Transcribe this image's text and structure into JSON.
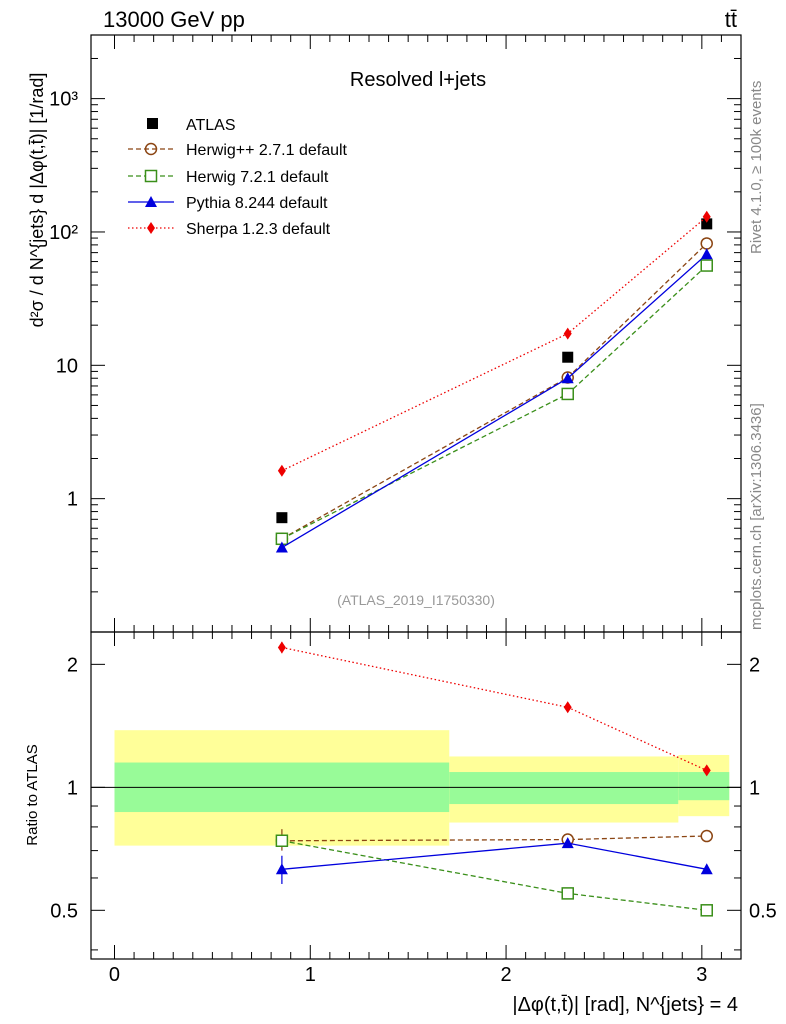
{
  "header": {
    "energy_label": "13000 GeV pp",
    "process_label": "tt̄"
  },
  "side_text": {
    "rivet": "Rivet 4.1.0, ≥ 100k events",
    "mcplots": "mcplots.cern.ch [arXiv:1306.3436]"
  },
  "colors": {
    "atlas": "#000000",
    "herwigpp": "#8b4513",
    "herwig7": "#3a8f1a",
    "pythia": "#0000dd",
    "sherpa": "#ee0000",
    "band_inner": "#98fb98",
    "band_outer": "#ffff99"
  },
  "chart_data": [
    {
      "type": "scatter",
      "panel": "main",
      "title": "Resolved l+jets",
      "analysis_id": "(ATLAS_2019_I1750330)",
      "ylabel": "d²σ / d N^{jets} d |Δφ(t,t̄)| [1/rad]",
      "xlim": [
        -0.12,
        3.2
      ],
      "ylim": [
        0.1,
        3000
      ],
      "yscale": "log",
      "y_tick_labels": [
        "1",
        "10",
        "10²",
        "10³"
      ],
      "x": [
        0.855,
        2.315,
        3.025
      ],
      "series": [
        {
          "name": "ATLAS",
          "key": "atlas",
          "style": "marker",
          "values": [
            0.72,
            11.5,
            115
          ]
        },
        {
          "name": "Herwig++ 2.7.1 default",
          "key": "herwigpp",
          "style": "dashed",
          "values": [
            0.5,
            8.1,
            82
          ]
        },
        {
          "name": "Herwig 7.2.1 default",
          "key": "herwig7",
          "style": "dashed",
          "values": [
            0.5,
            6.1,
            56
          ]
        },
        {
          "name": "Pythia 8.244 default",
          "key": "pythia",
          "style": "solid",
          "values": [
            0.43,
            8.0,
            68
          ]
        },
        {
          "name": "Sherpa 1.2.3 default",
          "key": "sherpa",
          "style": "dotted",
          "values": [
            1.62,
            17.3,
            130
          ]
        }
      ]
    },
    {
      "type": "line",
      "panel": "ratio",
      "ylabel": "Ratio to ATLAS",
      "xlabel": "|Δφ(t,t̄)| [rad], N^{jets} = 4",
      "xlim": [
        -0.12,
        3.2
      ],
      "ylim": [
        0.38,
        2.4
      ],
      "yscale": "log",
      "x_tick_labels": [
        "0",
        "1",
        "2",
        "3"
      ],
      "y_tick_labels": [
        "0.5",
        "1",
        "2"
      ],
      "x": [
        0.855,
        2.315,
        3.025
      ],
      "bands": [
        {
          "x_range": [
            0.0,
            1.71
          ],
          "inner": [
            0.87,
            1.15
          ],
          "outer": [
            0.72,
            1.38
          ]
        },
        {
          "x_range": [
            1.71,
            2.88
          ],
          "inner": [
            0.91,
            1.09
          ],
          "outer": [
            0.82,
            1.19
          ]
        },
        {
          "x_range": [
            2.88,
            3.14
          ],
          "inner": [
            0.93,
            1.09
          ],
          "outer": [
            0.85,
            1.2
          ]
        }
      ],
      "series": [
        {
          "name": "Herwig++ 2.7.1 default",
          "key": "herwigpp",
          "values": [
            0.74,
            0.745,
            0.76
          ]
        },
        {
          "name": "Herwig 7.2.1 default",
          "key": "herwig7",
          "values": [
            0.74,
            0.55,
            0.5
          ]
        },
        {
          "name": "Pythia 8.244 default",
          "key": "pythia",
          "values": [
            0.63,
            0.73,
            0.63
          ]
        },
        {
          "name": "Sherpa 1.2.3 default",
          "key": "sherpa",
          "values": [
            2.2,
            1.57,
            1.1
          ]
        }
      ]
    }
  ]
}
